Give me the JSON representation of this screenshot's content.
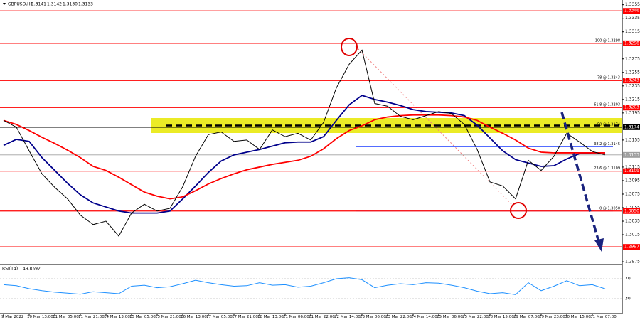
{
  "chart_data": {
    "type": "line",
    "title": "GBPUSD,H1",
    "header_quote": [
      "1.3141",
      "1.3142",
      "1.3130",
      "1.3133"
    ],
    "categories": [
      "9 Mar 2022",
      null,
      "10 Mar 13:00",
      null,
      "11 Mar 05:00",
      null,
      "11 Mar 21:00",
      null,
      "14 Mar 13:00",
      null,
      "15 Mar 05:00",
      null,
      "15 Mar 21:00",
      null,
      "16 Mar 13:00",
      null,
      "17 Mar 05:00",
      null,
      "17 Mar 21:00",
      null,
      "18 Mar 13:00",
      null,
      "21 Mar 06:00",
      null,
      "21 Mar 22:00",
      null,
      "22 Mar 14:00",
      null,
      "23 Mar 06:00",
      null,
      "23 Mar 22:00",
      null,
      "24 Mar 14:00",
      null,
      "25 Mar 06:00",
      null,
      "25 Mar 22:00",
      null,
      "28 Mar 15:00",
      null,
      "29 Mar 07:00",
      null,
      "29 Mar 23:00",
      null,
      "30 Mar 15:00",
      null,
      "31 Mar 07:00",
      null
    ],
    "series": [
      {
        "color": "#000000",
        "values": [
          1.3184,
          1.3174,
          1.3139,
          1.3105,
          1.3085,
          1.3068,
          1.3044,
          1.303,
          1.3035,
          1.3013,
          1.3047,
          1.306,
          1.305,
          1.3054,
          1.3086,
          1.3131,
          1.3163,
          1.3167,
          1.3153,
          1.3155,
          1.3141,
          1.317,
          1.316,
          1.3165,
          1.3155,
          1.3181,
          1.3232,
          1.3267,
          1.3288,
          1.3209,
          1.3205,
          1.319,
          1.3185,
          1.3191,
          1.3197,
          1.3194,
          1.3178,
          1.3141,
          1.3093,
          1.3087,
          1.3068,
          1.3125,
          1.311,
          1.3131,
          1.3165,
          1.3152,
          1.3138,
          1.3133
        ]
      },
      {
        "color": "#00008b",
        "values": [
          1.3147,
          1.3156,
          1.3153,
          1.3129,
          1.311,
          1.3091,
          1.3074,
          1.3062,
          1.3056,
          1.305,
          1.3047,
          1.3047,
          1.3047,
          1.305,
          1.3068,
          1.3087,
          1.3107,
          1.3124,
          1.3133,
          1.3137,
          1.3141,
          1.3146,
          1.3151,
          1.3152,
          1.3152,
          1.316,
          1.3184,
          1.3207,
          1.3221,
          1.3215,
          1.3211,
          1.3206,
          1.32,
          1.3197,
          1.3196,
          1.3195,
          1.3191,
          1.3177,
          1.3158,
          1.3139,
          1.3126,
          1.3121,
          1.3116,
          1.3117,
          1.3127,
          1.3135,
          1.3136,
          1.3136
        ]
      },
      {
        "color": "#ff0000",
        "values": [
          1.3184,
          1.3178,
          1.3169,
          1.3159,
          1.315,
          1.314,
          1.3129,
          1.3116,
          1.311,
          1.31,
          1.3089,
          1.3078,
          1.3072,
          1.3068,
          1.3071,
          1.308,
          1.309,
          1.3098,
          1.3105,
          1.3111,
          1.3115,
          1.3119,
          1.3122,
          1.3125,
          1.3131,
          1.3142,
          1.3157,
          1.3169,
          1.3176,
          1.3185,
          1.3189,
          1.3191,
          1.3192,
          1.3192,
          1.3192,
          1.3191,
          1.3189,
          1.3184,
          1.3174,
          1.3165,
          1.3155,
          1.3143,
          1.3137,
          1.3136,
          1.3136,
          1.3136,
          1.3136,
          1.3136
        ]
      }
    ],
    "ylim": [
      1.2973,
      1.3362
    ],
    "yticks": [
      1.2975,
      1.3015,
      1.3035,
      1.3055,
      1.3075,
      1.3095,
      1.3115,
      1.3155,
      1.3195,
      1.3215,
      1.3235,
      1.3255,
      1.3275,
      1.3315,
      1.3335,
      1.3355
    ],
    "levels": [
      {
        "value": 1.3346,
        "color": "#ff0000"
      },
      {
        "value": 1.3298,
        "color": "#ff0000"
      },
      {
        "value": 1.3243,
        "color": "#ff0000"
      },
      {
        "value": 1.3203,
        "color": "#ff0000"
      },
      {
        "value": 1.3174,
        "color": "#000000"
      },
      {
        "value": 1.3133,
        "color": "#a0a0a0"
      },
      {
        "value": 1.3109,
        "color": "#ff0000"
      },
      {
        "value": 1.305,
        "label": "1.3050",
        "color": "#ff0000"
      },
      {
        "value": 1.2997,
        "color": "#ff0000"
      }
    ],
    "fib_levels": [
      {
        "value": 1.3298,
        "label": "100 @ 1.3298"
      },
      {
        "value": 1.3243,
        "label": "78 @ 1.3243"
      },
      {
        "value": 1.3203,
        "label": "61.8 @ 1.3203"
      },
      {
        "value": 1.3174,
        "label": "50 @ 1.3174"
      },
      {
        "value": 1.3145,
        "label": "38.2 @ 1.3145"
      },
      {
        "value": 1.3109,
        "label": "23.6 @ 1.3109"
      },
      {
        "value": 1.305,
        "label": "0 @ 1.3050"
      }
    ],
    "rsi": {
      "title": "RSI(14)",
      "color": "#1e90ff",
      "ylim": [
        0,
        100
      ],
      "yticks": [
        70,
        30
      ],
      "values": [
        58,
        56,
        50,
        46,
        43,
        41,
        39,
        44,
        42,
        40,
        55,
        57,
        52,
        54,
        60,
        67,
        62,
        58,
        55,
        56,
        62,
        57,
        58,
        53,
        55,
        62,
        70,
        72,
        68,
        52,
        57,
        60,
        58,
        62,
        61,
        57,
        52,
        45,
        40,
        42,
        38,
        62,
        46,
        55,
        66,
        56,
        58,
        49.8592
      ]
    }
  }
}
